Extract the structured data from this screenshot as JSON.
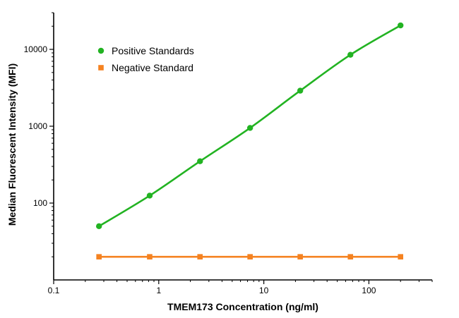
{
  "chart_data": {
    "type": "line",
    "title": "",
    "xlabel": "TMEM173 Concentration (ng/ml)",
    "ylabel": "Median Fluorescent Intensity (MFI)",
    "x_scale": "log",
    "y_scale": "log",
    "xlim": [
      0.1,
      400
    ],
    "ylim": [
      10,
      30000
    ],
    "x_ticks": [
      {
        "value": 0.1,
        "label": "0.1"
      },
      {
        "value": 1,
        "label": "1"
      },
      {
        "value": 10,
        "label": "10"
      },
      {
        "value": 100,
        "label": "100"
      }
    ],
    "y_ticks": [
      {
        "value": 100,
        "label": "100"
      },
      {
        "value": 1000,
        "label": "1000"
      },
      {
        "value": 10000,
        "label": "10000"
      }
    ],
    "grid": false,
    "legend_position": "top-left",
    "series": [
      {
        "name": "Positive Standards",
        "color": "#22b322",
        "marker": "circle",
        "x": [
          0.27,
          0.82,
          2.47,
          7.4,
          22.2,
          66.7,
          200
        ],
        "y": [
          50,
          125,
          350,
          950,
          2900,
          8500,
          20500
        ]
      },
      {
        "name": "Negative Standard",
        "color": "#f58220",
        "marker": "square",
        "x": [
          0.27,
          0.82,
          2.47,
          7.4,
          22.2,
          66.7,
          200
        ],
        "y": [
          20,
          20,
          20,
          20,
          20,
          20,
          20
        ]
      }
    ]
  }
}
